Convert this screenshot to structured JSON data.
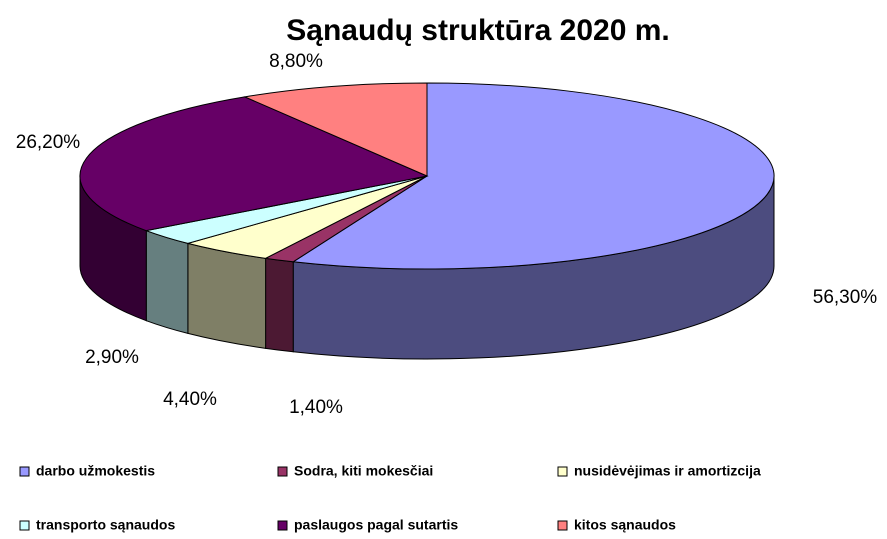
{
  "chart_data": {
    "type": "pie",
    "title": "Sąnaudų struktūra 2020 m.",
    "categories": [
      "darbo užmokestis",
      "Sodra, kiti mokesčiai",
      "nusidėvėjimas ir amortizcija",
      "transporto sąnaudos",
      "paslaugos pagal sutartis",
      "kitos sąnaudos"
    ],
    "values": [
      56.3,
      1.4,
      4.4,
      2.9,
      26.2,
      8.8
    ],
    "value_labels": [
      "56,30%",
      "1,40%",
      "4,40%",
      "2,90%",
      "26,20%",
      "8,80%"
    ],
    "colors": [
      "#9999ff",
      "#993366",
      "#ffffcc",
      "#ccffff",
      "#660066",
      "#ff8080"
    ],
    "legend": "bottom"
  }
}
